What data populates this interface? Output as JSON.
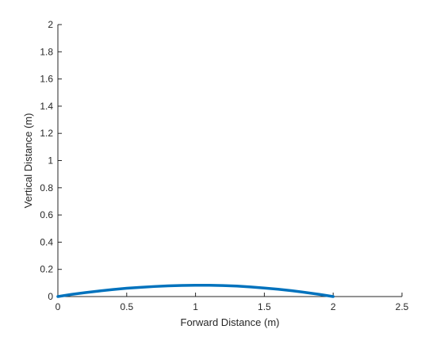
{
  "chart_data": {
    "type": "line",
    "title": "",
    "xlabel": "Forward Distance (m)",
    "ylabel": "Vertical Distance (m)",
    "xlim": [
      0,
      2.5
    ],
    "ylim": [
      0,
      2
    ],
    "xticks": [
      0,
      0.5,
      1,
      1.5,
      2,
      2.5
    ],
    "xtick_labels": [
      "0",
      "0.5",
      "1",
      "1.5",
      "2",
      "2.5"
    ],
    "yticks": [
      0,
      0.2,
      0.4,
      0.6,
      0.8,
      1,
      1.2,
      1.4,
      1.6,
      1.8,
      2
    ],
    "ytick_labels": [
      "0",
      "0.2",
      "0.4",
      "0.6",
      "0.8",
      "1",
      "1.2",
      "1.4",
      "1.6",
      "1.8",
      "2"
    ],
    "grid": false,
    "line_color": "#0072BD",
    "series": [
      {
        "x": [
          0,
          0.1,
          0.2,
          0.3,
          0.4,
          0.5,
          0.6,
          0.7,
          0.8,
          0.9,
          1.0,
          1.1,
          1.2,
          1.3,
          1.4,
          1.5,
          1.6,
          1.7,
          1.8,
          1.9,
          2.0
        ],
        "y": [
          0,
          0.016,
          0.029,
          0.041,
          0.052,
          0.061,
          0.068,
          0.074,
          0.079,
          0.082,
          0.083,
          0.083,
          0.081,
          0.077,
          0.071,
          0.063,
          0.054,
          0.043,
          0.03,
          0.016,
          0
        ]
      }
    ]
  }
}
